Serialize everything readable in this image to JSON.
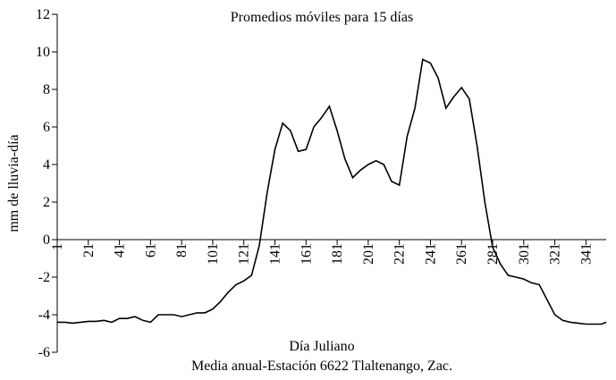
{
  "chart_data": {
    "type": "line",
    "title": "Promedios móviles para 15 días",
    "y_label": "mm de lluvia-día",
    "x_label": "Día Juliano",
    "note": "Media anual-Estación 6622 Tlaltenango, Zac.",
    "x": [
      1,
      6,
      11,
      16,
      21,
      26,
      31,
      36,
      41,
      46,
      51,
      56,
      61,
      66,
      71,
      76,
      81,
      86,
      91,
      96,
      101,
      106,
      111,
      116,
      121,
      126,
      131,
      136,
      141,
      146,
      151,
      156,
      161,
      166,
      171,
      176,
      181,
      186,
      191,
      196,
      201,
      206,
      211,
      216,
      221,
      226,
      231,
      236,
      241,
      246,
      251,
      256,
      261,
      266,
      271,
      276,
      281,
      286,
      291,
      296,
      301,
      306,
      311,
      316,
      321,
      326,
      331,
      336,
      341,
      346,
      351,
      354
    ],
    "series": [
      {
        "name": "Promedio móvil",
        "color": "#000000",
        "values": [
          -4.4,
          -4.4,
          -4.45,
          -4.4,
          -4.35,
          -4.35,
          -4.3,
          -4.4,
          -4.2,
          -4.2,
          -4.1,
          -4.3,
          -4.4,
          -4.0,
          -4.0,
          -4.0,
          -4.1,
          -4.0,
          -3.9,
          -3.9,
          -3.7,
          -3.3,
          -2.8,
          -2.4,
          -2.2,
          -1.9,
          -0.3,
          2.5,
          4.8,
          6.2,
          5.8,
          4.7,
          4.8,
          6.0,
          6.5,
          7.1,
          5.8,
          4.3,
          3.3,
          3.7,
          4.0,
          4.2,
          4.0,
          3.1,
          2.9,
          5.5,
          7.0,
          9.6,
          9.4,
          8.6,
          7.0,
          7.6,
          8.1,
          7.5,
          5.0,
          2.0,
          -0.4,
          -1.3,
          -1.9,
          -2.0,
          -2.1,
          -2.3,
          -2.4,
          -3.2,
          -4.0,
          -4.3,
          -4.4,
          -4.45,
          -4.5,
          -4.5,
          -4.5,
          -4.4
        ]
      }
    ],
    "xlim": [
      1,
      354
    ],
    "ylim": [
      -6,
      12
    ],
    "xticks": [
      1,
      21,
      41,
      61,
      81,
      101,
      121,
      141,
      161,
      181,
      201,
      221,
      241,
      261,
      281,
      301,
      321,
      341
    ],
    "yticks": [
      -6,
      -4,
      -2,
      0,
      2,
      4,
      6,
      8,
      10,
      12
    ]
  }
}
